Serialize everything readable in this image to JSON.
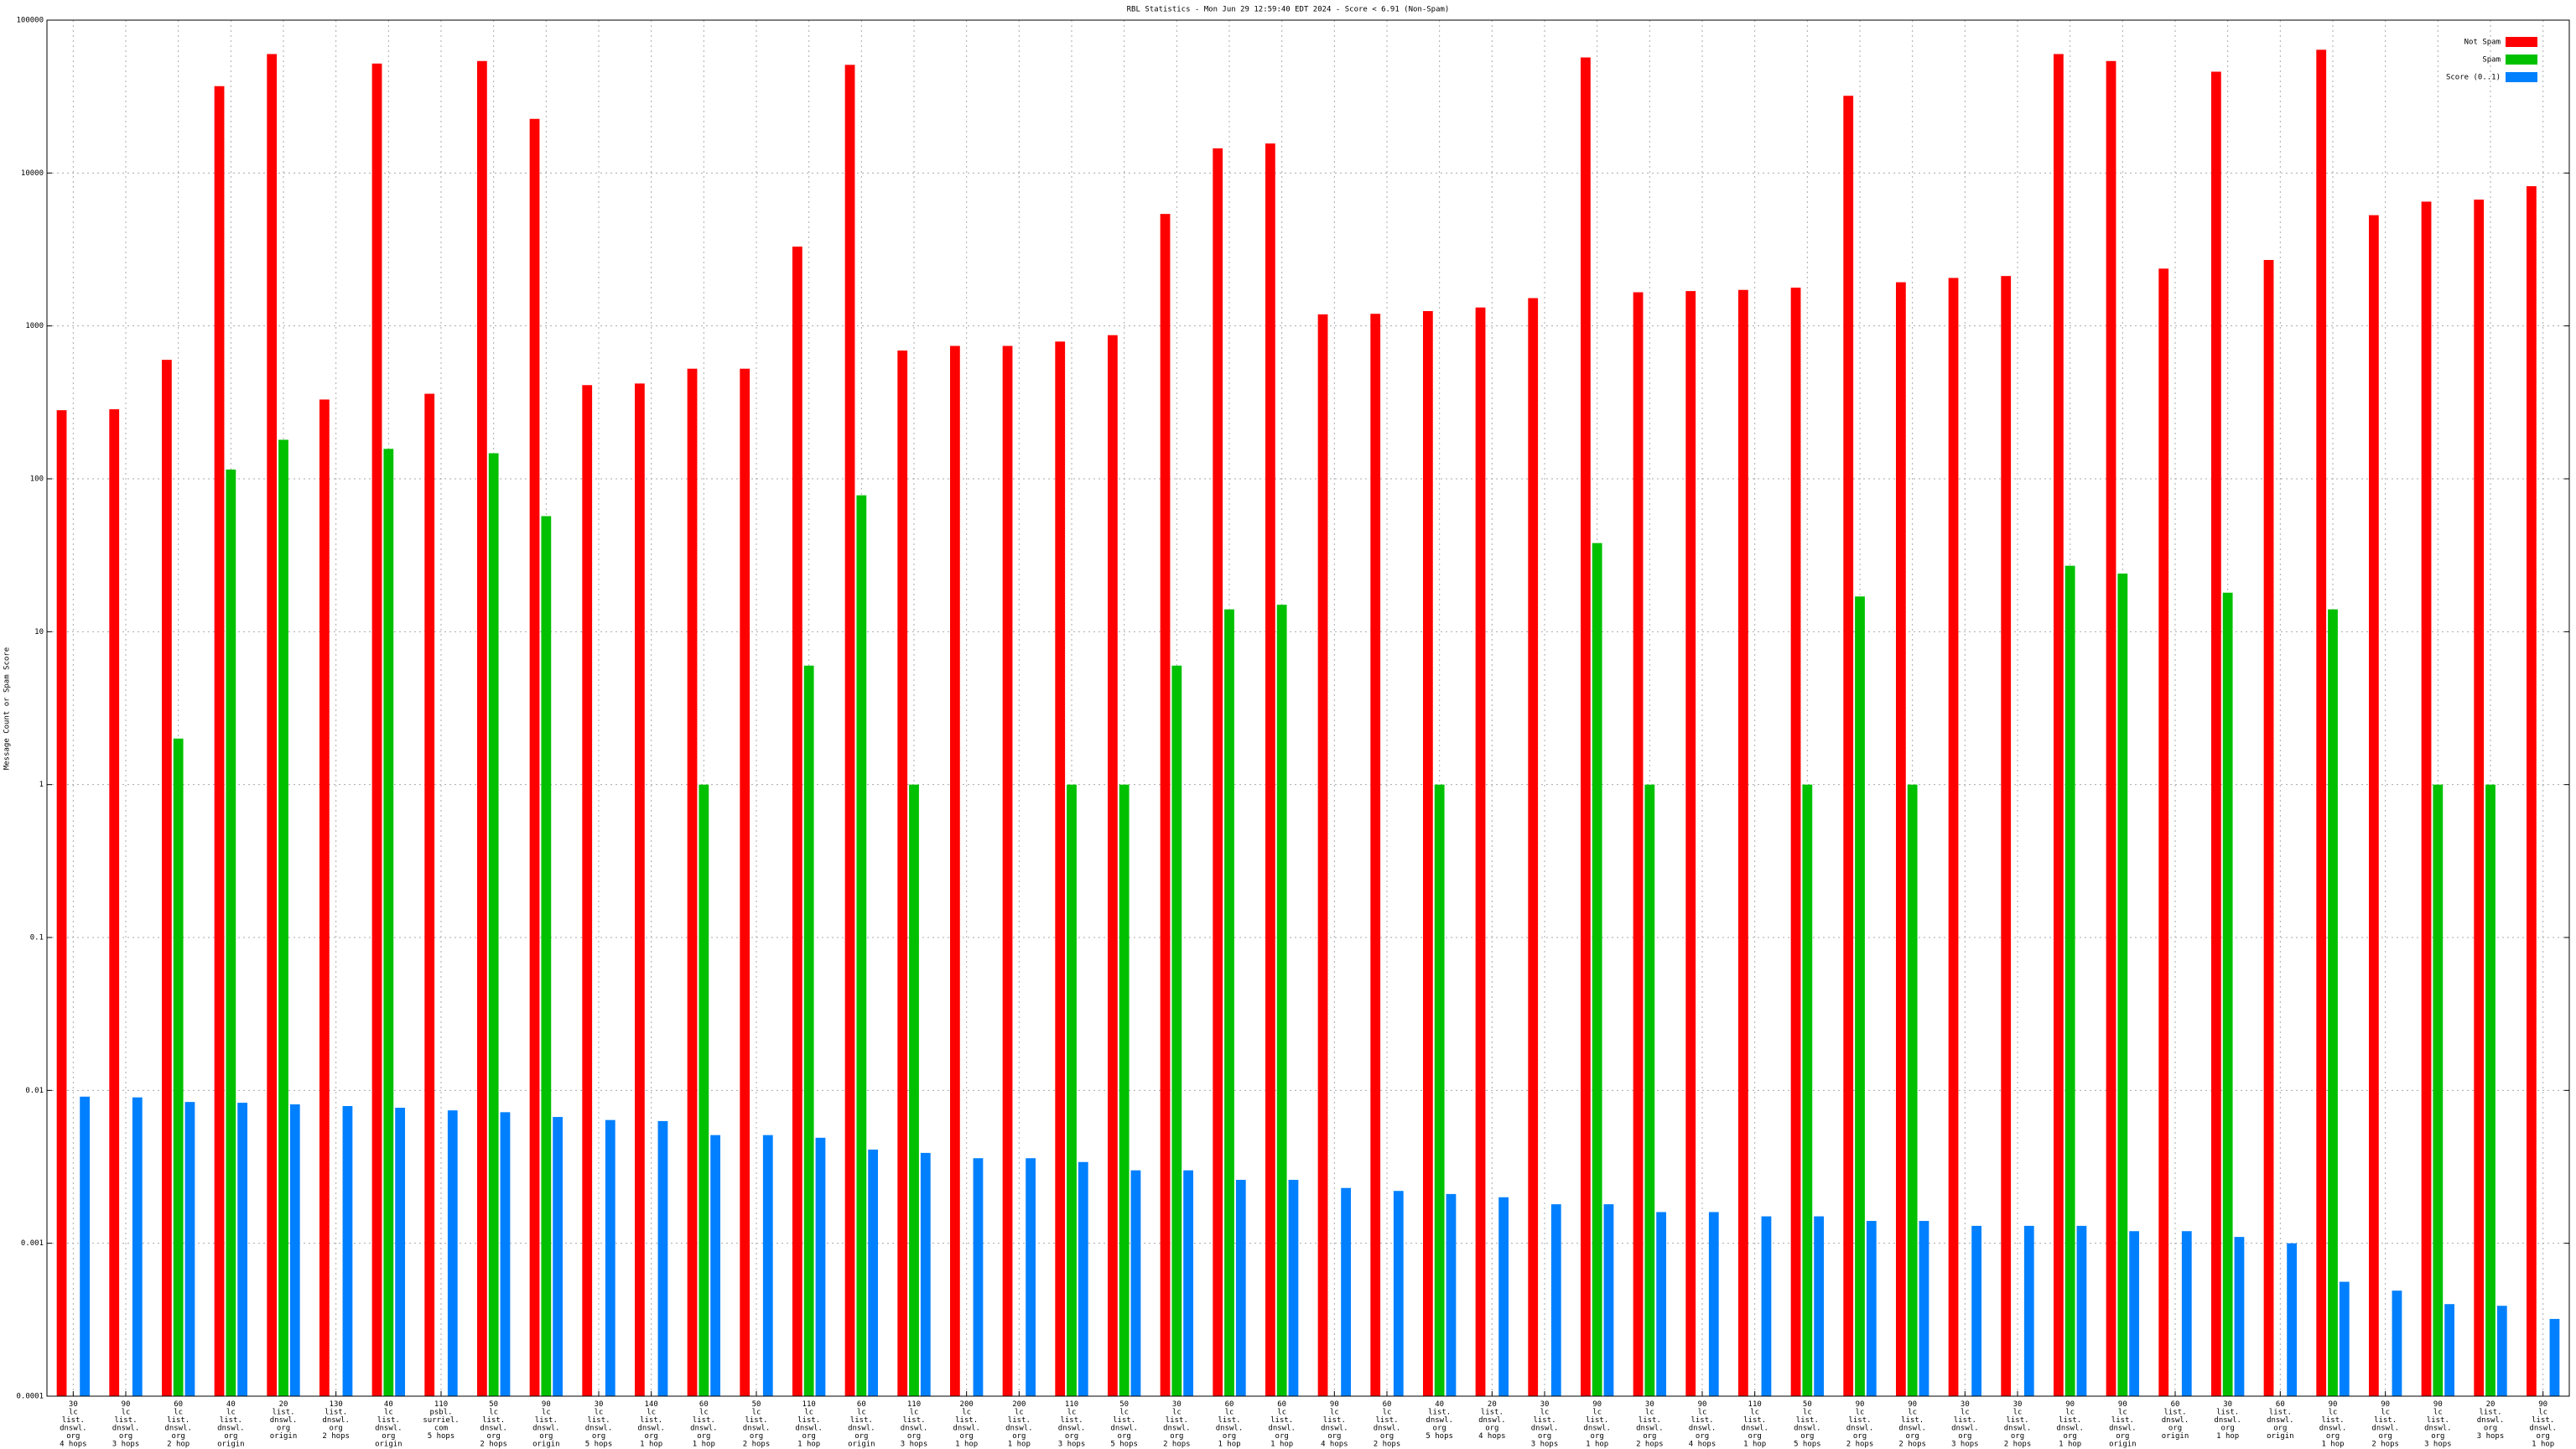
{
  "chart_data": {
    "type": "bar",
    "title": "RBL Statistics - Mon Jun 29 12:59:40 EDT 2024 - Score < 6.91 (Non-Spam)",
    "y_label": "Message Count or Spam Score",
    "log_scale": true,
    "grid": true,
    "legend": "top-right",
    "ylim": [
      0.0001,
      100000
    ],
    "yticks": [
      0.0001,
      0.001,
      0.01,
      0.1,
      1,
      10,
      100,
      1000,
      10000,
      100000
    ],
    "categories": [
      [
        "30",
        "lc",
        "list.",
        "dnswl.",
        "org",
        "4 hops"
      ],
      [
        "90",
        "lc",
        "list.",
        "dnswl.",
        "org",
        "3 hops"
      ],
      [
        "60",
        "lc",
        "list.",
        "dnswl.",
        "org",
        "2 hop"
      ],
      [
        "40",
        "lc",
        "list.",
        "dnswl.",
        "org",
        "origin"
      ],
      [
        "20",
        "list.",
        "dnswl.",
        "org",
        "origin"
      ],
      [
        "130",
        "list.",
        "dnswl.",
        "org",
        "2 hops"
      ],
      [
        "40",
        "lc",
        "list.",
        "dnswl.",
        "org",
        "origin"
      ],
      [
        "110",
        "psbl.",
        "surriel.",
        "com",
        "5 hops"
      ],
      [
        "50",
        "lc",
        "list.",
        "dnswl.",
        "org",
        "2 hops"
      ],
      [
        "90",
        "lc",
        "list.",
        "dnswl.",
        "org",
        "origin"
      ],
      [
        "30",
        "lc",
        "list.",
        "dnswl.",
        "org",
        "5 hops"
      ],
      [
        "140",
        "lc",
        "list.",
        "dnswl.",
        "org",
        "1 hop"
      ],
      [
        "60",
        "lc",
        "list.",
        "dnswl.",
        "org",
        "1 hop"
      ],
      [
        "50",
        "lc",
        "list.",
        "dnswl.",
        "org",
        "2 hops"
      ],
      [
        "110",
        "lc",
        "list.",
        "dnswl.",
        "org",
        "1 hop"
      ],
      [
        "60",
        "lc",
        "list.",
        "dnswl.",
        "org",
        "origin"
      ],
      [
        "110",
        "lc",
        "list.",
        "dnswl.",
        "org",
        "3 hops"
      ],
      [
        "200",
        "lc",
        "list.",
        "dnswl.",
        "org",
        "1 hop"
      ],
      [
        "200",
        "lc",
        "list.",
        "dnswl.",
        "org",
        "1 hop"
      ],
      [
        "110",
        "lc",
        "list.",
        "dnswl.",
        "org",
        "3 hops"
      ],
      [
        "50",
        "lc",
        "list.",
        "dnswl.",
        "org",
        "5 hops"
      ],
      [
        "30",
        "lc",
        "list.",
        "dnswl.",
        "org",
        "2 hops"
      ],
      [
        "60",
        "lc",
        "list.",
        "dnswl.",
        "org",
        "1 hop"
      ],
      [
        "60",
        "lc",
        "list.",
        "dnswl.",
        "org",
        "1 hop"
      ],
      [
        "90",
        "lc",
        "list.",
        "dnswl.",
        "org",
        "4 hops"
      ],
      [
        "60",
        "lc",
        "list.",
        "dnswl.",
        "org",
        "2 hops"
      ],
      [
        "40",
        "list.",
        "dnswl.",
        "org",
        "5 hops"
      ],
      [
        "20",
        "list.",
        "dnswl.",
        "org",
        "4 hops"
      ],
      [
        "30",
        "lc",
        "list.",
        "dnswl.",
        "org",
        "3 hops"
      ],
      [
        "90",
        "lc",
        "list.",
        "dnswl.",
        "org",
        "1 hop"
      ],
      [
        "30",
        "lc",
        "list.",
        "dnswl.",
        "org",
        "2 hops"
      ],
      [
        "90",
        "lc",
        "list.",
        "dnswl.",
        "org",
        "4 hops"
      ],
      [
        "110",
        "lc",
        "list.",
        "dnswl.",
        "org",
        "1 hop"
      ],
      [
        "50",
        "lc",
        "list.",
        "dnswl.",
        "org",
        "5 hops"
      ],
      [
        "90",
        "lc",
        "list.",
        "dnswl.",
        "org",
        "2 hops"
      ],
      [
        "90",
        "lc",
        "list.",
        "dnswl.",
        "org",
        "2 hops"
      ],
      [
        "30",
        "lc",
        "list.",
        "dnswl.",
        "org",
        "3 hops"
      ],
      [
        "30",
        "lc",
        "list.",
        "dnswl.",
        "org",
        "2 hops"
      ],
      [
        "90",
        "lc",
        "list.",
        "dnswl.",
        "org",
        "1 hop"
      ],
      [
        "90",
        "lc",
        "list.",
        "dnswl.",
        "org",
        "origin"
      ],
      [
        "60",
        "list.",
        "dnswl.",
        "org",
        "origin"
      ],
      [
        "30",
        "list.",
        "dnswl.",
        "org",
        "1 hop"
      ],
      [
        "60",
        "list.",
        "dnswl.",
        "org",
        "origin"
      ],
      [
        "90",
        "lc",
        "list.",
        "dnswl.",
        "org",
        "1 hop"
      ],
      [
        "90",
        "lc",
        "list.",
        "dnswl.",
        "org",
        "2 hops"
      ],
      [
        "90",
        "lc",
        "list.",
        "dnswl.",
        "org",
        "3 hops"
      ],
      [
        "20",
        "list.",
        "dnswl.",
        "org",
        "3 hops"
      ],
      [
        "90",
        "lc",
        "list.",
        "dnswl.",
        "org",
        "1 hop"
      ]
    ],
    "series": [
      {
        "name": "Not Spam",
        "color": "#ff0000",
        "values": [
          281,
          285,
          600,
          37000,
          60000,
          330,
          52000,
          360,
          54000,
          22600,
          410,
          420,
          525,
          525,
          3300,
          51000,
          690,
          740,
          740,
          790,
          870,
          5400,
          14500,
          15600,
          1190,
          1200,
          1250,
          1320,
          1520,
          57000,
          1660,
          1690,
          1720,
          1780,
          32000,
          1930,
          2060,
          2120,
          60000,
          54000,
          2370,
          46000,
          2700,
          64000,
          5300,
          6500,
          6700,
          8200
        ]
      },
      {
        "name": "Spam",
        "color": "#00c000",
        "values": [
          null,
          null,
          2,
          115,
          180,
          null,
          157,
          null,
          147,
          57,
          null,
          null,
          1,
          null,
          6,
          78,
          1,
          null,
          null,
          1,
          1,
          6,
          14,
          15,
          null,
          null,
          1,
          null,
          null,
          38,
          1,
          null,
          null,
          1,
          17,
          1,
          null,
          null,
          27,
          24,
          null,
          18,
          null,
          14,
          null,
          1,
          1,
          null
        ]
      },
      {
        "name": "Score (0..1)",
        "color": "#0080ff",
        "values": [
          0.0091,
          0.009,
          0.0084,
          0.0083,
          0.0081,
          0.0079,
          0.0077,
          0.0074,
          0.0072,
          0.0067,
          0.0064,
          0.0063,
          0.0051,
          0.0051,
          0.0049,
          0.0041,
          0.0039,
          0.0036,
          0.0036,
          0.0034,
          0.003,
          0.003,
          0.0026,
          0.0026,
          0.0023,
          0.0022,
          0.0021,
          0.002,
          0.0018,
          0.0018,
          0.0016,
          0.0016,
          0.0015,
          0.0015,
          0.0014,
          0.0014,
          0.0013,
          0.0013,
          0.0013,
          0.0012,
          0.0012,
          0.0011,
          0.001,
          0.00056,
          0.00049,
          0.0004,
          0.00039,
          0.00032
        ]
      }
    ]
  }
}
